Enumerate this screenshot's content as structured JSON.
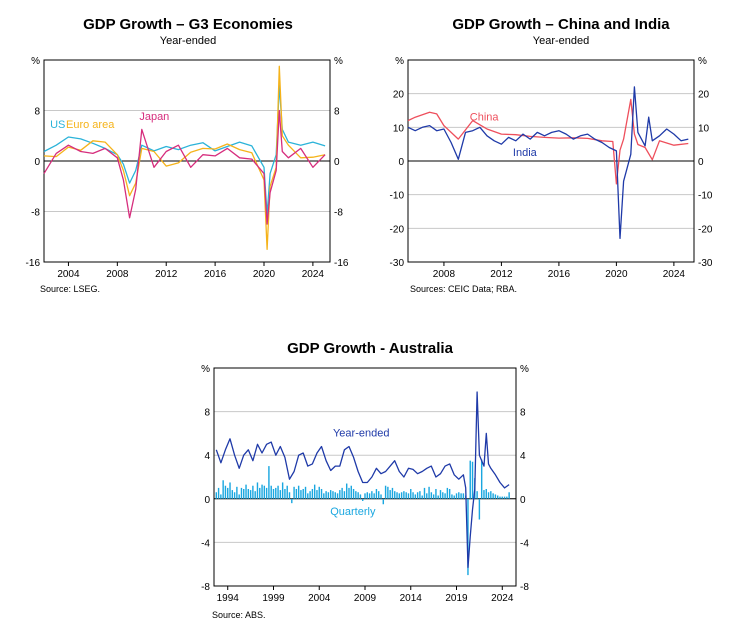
{
  "chart_data": [
    {
      "type": "line",
      "title": "GDP Growth – G3 Economies",
      "subtitle": "Year-ended",
      "unit_left": "%",
      "unit_right": "%",
      "source": "Source:   LSEG.",
      "xlim": [
        2002,
        2025.4
      ],
      "ylim": [
        -16,
        16
      ],
      "y_ticks": [
        -16,
        -8,
        0,
        8
      ],
      "x_ticks": [
        2004,
        2008,
        2012,
        2016,
        2020,
        2024
      ],
      "grid": true,
      "series": [
        {
          "name": "US",
          "color": "#2bb3d9",
          "label_pos": [
            2002.5,
            5.2
          ],
          "x": [
            2002,
            2003,
            2004,
            2005,
            2006,
            2007,
            2008,
            2008.5,
            2009,
            2009.5,
            2010,
            2011,
            2012,
            2013,
            2014,
            2015,
            2016,
            2017,
            2018,
            2019,
            2020,
            2020.25,
            2020.5,
            2021,
            2021.25,
            2021.5,
            2022,
            2023,
            2024,
            2025
          ],
          "values": [
            1.5,
            2.5,
            3.8,
            3.5,
            2.8,
            2.0,
            1.0,
            -0.5,
            -3.5,
            -1.5,
            2.5,
            1.6,
            2.3,
            1.8,
            2.5,
            2.9,
            1.6,
            2.3,
            3.0,
            2.4,
            -1.0,
            -8.5,
            -2.0,
            1.0,
            12.0,
            5.0,
            3.0,
            2.5,
            3.0,
            2.4
          ]
        },
        {
          "name": "Euro area",
          "color": "#f5b31b",
          "label_pos": [
            2003.8,
            5.2
          ],
          "x": [
            2002,
            2003,
            2004,
            2005,
            2006,
            2007,
            2008,
            2008.5,
            2009,
            2009.5,
            2010,
            2011,
            2012,
            2013,
            2014,
            2015,
            2016,
            2017,
            2018,
            2019,
            2020,
            2020.25,
            2020.5,
            2021,
            2021.25,
            2021.5,
            2022,
            2023,
            2024,
            2025
          ],
          "values": [
            0.8,
            0.7,
            2.2,
            1.7,
            3.2,
            3.0,
            1.0,
            -1.5,
            -5.5,
            -3.5,
            2.0,
            1.5,
            -0.8,
            -0.3,
            1.4,
            2.0,
            1.9,
            2.7,
            1.8,
            1.3,
            -3.0,
            -14.0,
            -4.0,
            -1.0,
            15.0,
            4.0,
            2.5,
            0.5,
            0.6,
            1.0
          ]
        },
        {
          "name": "Japan",
          "color": "#d62d7d",
          "label_pos": [
            2009.8,
            6.5
          ],
          "x": [
            2002,
            2003,
            2004,
            2005,
            2006,
            2007,
            2008,
            2008.5,
            2009,
            2009.5,
            2010,
            2011,
            2012,
            2013,
            2014,
            2015,
            2016,
            2017,
            2018,
            2019,
            2020,
            2020.25,
            2020.5,
            2021,
            2021.25,
            2021.5,
            2022,
            2023,
            2024,
            2025
          ],
          "values": [
            -2.0,
            1.2,
            2.5,
            1.5,
            1.2,
            2.0,
            0.5,
            -3.0,
            -9.0,
            -4.5,
            5.0,
            -1.0,
            1.5,
            2.5,
            -1.0,
            1.0,
            0.8,
            2.0,
            0.5,
            0.3,
            -2.0,
            -10.0,
            -5.0,
            -1.5,
            8.0,
            1.5,
            0.5,
            2.0,
            -1.0,
            1.0
          ]
        }
      ]
    },
    {
      "type": "line",
      "title": "GDP Growth – China and India",
      "subtitle": "Year-ended",
      "unit_left": "%",
      "unit_right": "%",
      "source": "Sources: CEIC Data; RBA.",
      "xlim": [
        2005.5,
        2025.4
      ],
      "ylim": [
        -30,
        30
      ],
      "y_ticks": [
        -30,
        -20,
        -10,
        0,
        10,
        20
      ],
      "x_ticks": [
        2008,
        2012,
        2016,
        2020,
        2024
      ],
      "grid": true,
      "series": [
        {
          "name": "China",
          "color": "#ee4f5c",
          "label_pos": [
            2009.8,
            12.0
          ],
          "x": [
            2005.5,
            2006,
            2007,
            2007.5,
            2008,
            2009,
            2010,
            2011,
            2012,
            2013,
            2014,
            2015,
            2016,
            2017,
            2018,
            2019,
            2019.75,
            2020,
            2020.25,
            2020.5,
            2021,
            2021.25,
            2021.5,
            2022,
            2022.5,
            2023,
            2024,
            2025
          ],
          "values": [
            12.0,
            13.0,
            14.5,
            14.0,
            10.5,
            6.5,
            12.0,
            9.5,
            8.0,
            7.8,
            7.3,
            7.0,
            6.8,
            6.9,
            6.7,
            6.0,
            5.8,
            -6.8,
            3.2,
            6.5,
            18.3,
            8.0,
            4.9,
            4.0,
            0.4,
            6.0,
            4.7,
            5.2
          ]
        },
        {
          "name": "India",
          "color": "#1f3aa8",
          "label_pos": [
            2012.8,
            1.5
          ],
          "x": [
            2005.5,
            2006,
            2006.5,
            2007,
            2007.5,
            2008,
            2008.5,
            2009,
            2009.5,
            2010,
            2010.5,
            2011,
            2011.5,
            2012,
            2012.5,
            2013,
            2013.5,
            2014,
            2014.5,
            2015,
            2015.5,
            2016,
            2016.5,
            2017,
            2017.5,
            2018,
            2018.5,
            2019,
            2019.5,
            2020,
            2020.25,
            2020.5,
            2021,
            2021.25,
            2021.5,
            2022,
            2022.25,
            2022.5,
            2023,
            2023.5,
            2024,
            2024.5,
            2025
          ],
          "values": [
            10.0,
            9.0,
            10.0,
            10.5,
            9.0,
            9.5,
            5.5,
            0.5,
            8.5,
            9.0,
            10.0,
            7.5,
            6.0,
            5.0,
            7.0,
            6.0,
            8.0,
            6.5,
            8.5,
            7.5,
            8.5,
            9.0,
            8.0,
            6.5,
            7.5,
            8.0,
            6.5,
            5.5,
            4.0,
            3.0,
            -23.0,
            -6.0,
            2.0,
            22.0,
            8.5,
            4.5,
            13.0,
            6.0,
            7.5,
            9.5,
            8.0,
            6.0,
            6.5
          ]
        }
      ]
    },
    {
      "type": "bar+line",
      "title": "GDP Growth - Australia",
      "unit_left": "%",
      "unit_right": "%",
      "source": "Source:   ABS.",
      "xlim": [
        1992.5,
        2025.5
      ],
      "ylim": [
        -8,
        12
      ],
      "y_ticks": [
        -8,
        -4,
        0,
        4,
        8
      ],
      "x_ticks": [
        1994,
        1999,
        2004,
        2009,
        2014,
        2019,
        2024
      ],
      "grid": true,
      "series_labels": [
        {
          "name": "Year-ended",
          "color": "#1f3aa8",
          "label_pos": [
            2005.5,
            5.7
          ]
        },
        {
          "name": "Quarterly",
          "color": "#1aa7e0",
          "label_pos": [
            2005.2,
            -1.5
          ]
        }
      ],
      "year_ended": {
        "color": "#1f3aa8",
        "x": [
          1992.75,
          1993.25,
          1993.75,
          1994.25,
          1994.75,
          1995.25,
          1995.75,
          1996.25,
          1996.75,
          1997.25,
          1997.75,
          1998.25,
          1998.75,
          1999.25,
          1999.75,
          2000.25,
          2000.75,
          2001.25,
          2001.75,
          2002.25,
          2002.75,
          2003.25,
          2003.75,
          2004.25,
          2004.75,
          2005.25,
          2005.75,
          2006.25,
          2006.75,
          2007.25,
          2007.75,
          2008.25,
          2008.75,
          2009.25,
          2009.75,
          2010.25,
          2010.75,
          2011.25,
          2011.75,
          2012.25,
          2012.75,
          2013.25,
          2013.75,
          2014.25,
          2014.75,
          2015.25,
          2015.75,
          2016.25,
          2016.75,
          2017.25,
          2017.75,
          2018.25,
          2018.75,
          2019.25,
          2019.75,
          2020.0,
          2020.25,
          2020.5,
          2020.75,
          2021.0,
          2021.25,
          2021.5,
          2021.75,
          2022.0,
          2022.25,
          2022.5,
          2022.75,
          2023.25,
          2023.75,
          2024.25,
          2024.75
        ],
        "values": [
          4.5,
          3.3,
          4.5,
          5.5,
          4.0,
          2.8,
          4.0,
          4.5,
          3.5,
          5.0,
          4.2,
          5.0,
          5.2,
          4.0,
          4.8,
          3.8,
          1.8,
          2.5,
          4.0,
          4.2,
          3.0,
          3.2,
          4.2,
          4.8,
          3.5,
          2.6,
          3.0,
          3.0,
          4.5,
          4.8,
          3.8,
          2.5,
          1.5,
          1.5,
          2.0,
          2.8,
          2.3,
          2.5,
          3.0,
          3.5,
          2.5,
          2.0,
          2.8,
          2.7,
          2.3,
          2.5,
          2.8,
          3.0,
          2.0,
          2.3,
          3.0,
          3.2,
          2.2,
          1.8,
          2.2,
          1.0,
          -6.3,
          -3.5,
          -1.0,
          0.9,
          9.8,
          4.0,
          3.5,
          3.0,
          6.0,
          3.2,
          2.8,
          2.2,
          1.5,
          1.0,
          1.3
        ]
      },
      "quarterly": {
        "color": "#1aa7e0",
        "x": [
          1992.75,
          1993.0,
          1993.25,
          1993.5,
          1993.75,
          1994.0,
          1994.25,
          1994.5,
          1994.75,
          1995.0,
          1995.25,
          1995.5,
          1995.75,
          1996.0,
          1996.25,
          1996.5,
          1996.75,
          1997.0,
          1997.25,
          1997.5,
          1997.75,
          1998.0,
          1998.25,
          1998.5,
          1998.75,
          1999.0,
          1999.25,
          1999.5,
          1999.75,
          2000.0,
          2000.25,
          2000.5,
          2000.75,
          2001.0,
          2001.25,
          2001.5,
          2001.75,
          2002.0,
          2002.25,
          2002.5,
          2002.75,
          2003.0,
          2003.25,
          2003.5,
          2003.75,
          2004.0,
          2004.25,
          2004.5,
          2004.75,
          2005.0,
          2005.25,
          2005.5,
          2005.75,
          2006.0,
          2006.25,
          2006.5,
          2006.75,
          2007.0,
          2007.25,
          2007.5,
          2007.75,
          2008.0,
          2008.25,
          2008.5,
          2008.75,
          2009.0,
          2009.25,
          2009.5,
          2009.75,
          2010.0,
          2010.25,
          2010.5,
          2010.75,
          2011.0,
          2011.25,
          2011.5,
          2011.75,
          2012.0,
          2012.25,
          2012.5,
          2012.75,
          2013.0,
          2013.25,
          2013.5,
          2013.75,
          2014.0,
          2014.25,
          2014.5,
          2014.75,
          2015.0,
          2015.25,
          2015.5,
          2015.75,
          2016.0,
          2016.25,
          2016.5,
          2016.75,
          2017.0,
          2017.25,
          2017.5,
          2017.75,
          2018.0,
          2018.25,
          2018.5,
          2018.75,
          2019.0,
          2019.25,
          2019.5,
          2019.75,
          2020.0,
          2020.25,
          2020.5,
          2020.75,
          2021.0,
          2021.25,
          2021.5,
          2021.75,
          2022.0,
          2022.25,
          2022.5,
          2022.75,
          2023.0,
          2023.25,
          2023.5,
          2023.75,
          2024.0,
          2024.25,
          2024.5,
          2024.75
        ],
        "values": [
          0.6,
          1.0,
          0.4,
          1.7,
          1.2,
          1.0,
          1.5,
          0.8,
          0.6,
          1.1,
          0.4,
          1.0,
          0.9,
          1.3,
          0.9,
          0.8,
          1.2,
          0.7,
          1.5,
          1.0,
          1.3,
          1.2,
          1.0,
          3.0,
          1.2,
          0.9,
          1.0,
          1.2,
          0.8,
          1.5,
          0.9,
          1.2,
          0.6,
          -0.4,
          1.1,
          0.9,
          1.2,
          0.8,
          0.9,
          1.1,
          0.5,
          0.7,
          0.9,
          1.3,
          0.8,
          1.1,
          0.9,
          0.5,
          0.7,
          0.6,
          0.8,
          0.7,
          0.6,
          0.5,
          0.8,
          1.0,
          0.7,
          1.4,
          1.0,
          1.2,
          0.9,
          0.7,
          0.6,
          0.4,
          -0.2,
          0.5,
          0.6,
          0.5,
          0.7,
          0.5,
          0.9,
          0.7,
          0.4,
          -0.5,
          1.2,
          1.1,
          0.8,
          1.0,
          0.7,
          0.6,
          0.5,
          0.6,
          0.7,
          0.6,
          0.5,
          0.9,
          0.6,
          0.4,
          0.6,
          0.7,
          0.3,
          1.0,
          0.5,
          1.1,
          0.6,
          0.4,
          0.9,
          0.3,
          0.8,
          0.6,
          0.5,
          1.0,
          0.9,
          0.4,
          0.3,
          0.5,
          0.6,
          0.5,
          0.5,
          0.3,
          -7.0,
          3.5,
          3.4,
          1.9,
          0.7,
          -1.9,
          3.6,
          0.8,
          0.9,
          0.6,
          0.7,
          0.5,
          0.4,
          0.3,
          0.2,
          0.2,
          0.2,
          0.2,
          0.6
        ]
      }
    }
  ]
}
